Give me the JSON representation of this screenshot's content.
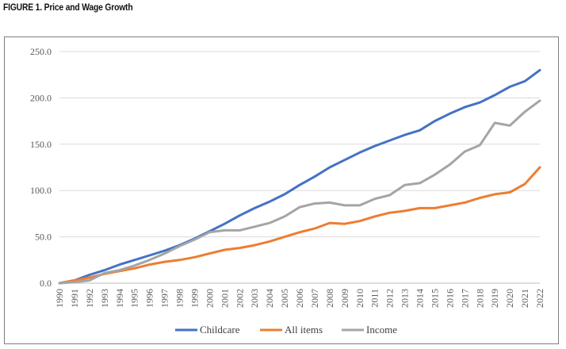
{
  "figure": {
    "title": "FIGURE 1. Price and Wage Growth"
  },
  "chart_data": {
    "type": "line",
    "title": "",
    "xlabel": "",
    "ylabel": "",
    "ylim": [
      0,
      250
    ],
    "yticks": [
      "0.0",
      "50.0",
      "100.0",
      "150.0",
      "200.0",
      "250.0"
    ],
    "grid": "horizontal",
    "legend_position": "bottom",
    "x": [
      "1990",
      "1991",
      "1992",
      "1993",
      "1994",
      "1995",
      "1996",
      "1997",
      "1998",
      "1999",
      "2000",
      "2001",
      "2002",
      "2003",
      "2004",
      "2005",
      "2006",
      "2007",
      "2008",
      "2009",
      "2010",
      "2011",
      "2012",
      "2013",
      "2014",
      "2015",
      "2016",
      "2017",
      "2018",
      "2019",
      "2020",
      "2021",
      "2022"
    ],
    "series": [
      {
        "name": "Childcare",
        "color": "#4472C4",
        "values": [
          0,
          3,
          9,
          14,
          20,
          25,
          30,
          35,
          41,
          48,
          56,
          64,
          73,
          81,
          88,
          96,
          106,
          115,
          125,
          133,
          141,
          148,
          154,
          160,
          165,
          175,
          183,
          190,
          195,
          203,
          212,
          218,
          230
        ]
      },
      {
        "name": "All items",
        "color": "#ED7D31",
        "values": [
          0,
          3,
          6,
          10,
          13,
          16,
          20,
          23,
          25,
          28,
          32,
          36,
          38,
          41,
          45,
          50,
          55,
          59,
          65,
          64,
          67,
          72,
          76,
          78,
          81,
          81,
          84,
          87,
          92,
          96,
          98,
          107,
          125
        ]
      },
      {
        "name": "Income",
        "color": "#A5A5A5",
        "values": [
          0,
          1,
          3,
          11,
          14,
          19,
          25,
          32,
          40,
          47,
          55,
          57,
          57,
          61,
          65,
          72,
          82,
          86,
          87,
          84,
          84,
          91,
          95,
          106,
          108,
          117,
          128,
          142,
          149,
          173,
          170,
          185,
          197
        ]
      }
    ]
  }
}
